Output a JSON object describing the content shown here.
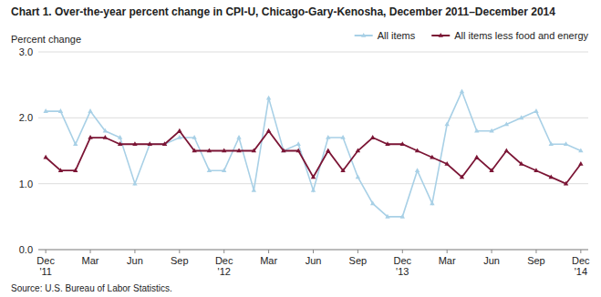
{
  "chart_data": {
    "type": "line",
    "title": "Chart 1. Over-the-year percent change in CPI-U, Chicago-Gary-Kenosha,  December 2011–December 2014",
    "y_label": "Percent change",
    "source": "Source: U.S. Bureau of Labor Statistics.",
    "categories": [
      "Dec\n'11",
      null,
      null,
      "Mar",
      null,
      null,
      "Jun",
      null,
      null,
      "Sep",
      null,
      null,
      "Dec\n'12",
      null,
      null,
      "Mar",
      null,
      null,
      "Jun",
      null,
      null,
      "Sep",
      null,
      null,
      "Dec\n'13",
      null,
      null,
      "Mar",
      null,
      null,
      "Jun",
      null,
      null,
      "Sep",
      null,
      null,
      "Dec\n'14"
    ],
    "series": [
      {
        "name": "All items",
        "color": "#a8d0e6",
        "marker": "triangle",
        "line_style": "solid",
        "values": [
          2.1,
          2.1,
          1.6,
          2.1,
          1.8,
          1.7,
          1.0,
          1.6,
          1.6,
          1.7,
          1.7,
          1.2,
          1.2,
          1.7,
          0.9,
          2.3,
          1.5,
          1.6,
          0.9,
          1.7,
          1.7,
          1.1,
          0.7,
          0.5,
          0.5,
          1.2,
          0.7,
          1.9,
          2.4,
          1.8,
          1.8,
          1.9,
          2.0,
          2.1,
          1.6,
          1.6,
          1.5
        ]
      },
      {
        "name": "All items less food and energy",
        "color": "#7b1535",
        "marker": "triangle",
        "line_style": "solid",
        "values": [
          1.4,
          1.2,
          1.2,
          1.7,
          1.7,
          1.6,
          1.6,
          1.6,
          1.6,
          1.8,
          1.5,
          1.5,
          1.5,
          1.5,
          1.5,
          1.8,
          1.5,
          1.5,
          1.1,
          1.5,
          1.2,
          1.5,
          1.7,
          1.6,
          1.6,
          1.5,
          1.4,
          1.3,
          1.1,
          1.4,
          1.2,
          1.5,
          1.3,
          1.2,
          1.1,
          1.0,
          1.3
        ]
      }
    ],
    "ylim": [
      0.0,
      3.0
    ],
    "yticks": [
      {
        "value": 0.0,
        "label": "0.0"
      },
      {
        "value": 1.0,
        "label": "1.0"
      },
      {
        "value": 2.0,
        "label": "2.0"
      },
      {
        "value": 3.0,
        "label": "3.0"
      }
    ],
    "grid": true,
    "legend": "top"
  }
}
